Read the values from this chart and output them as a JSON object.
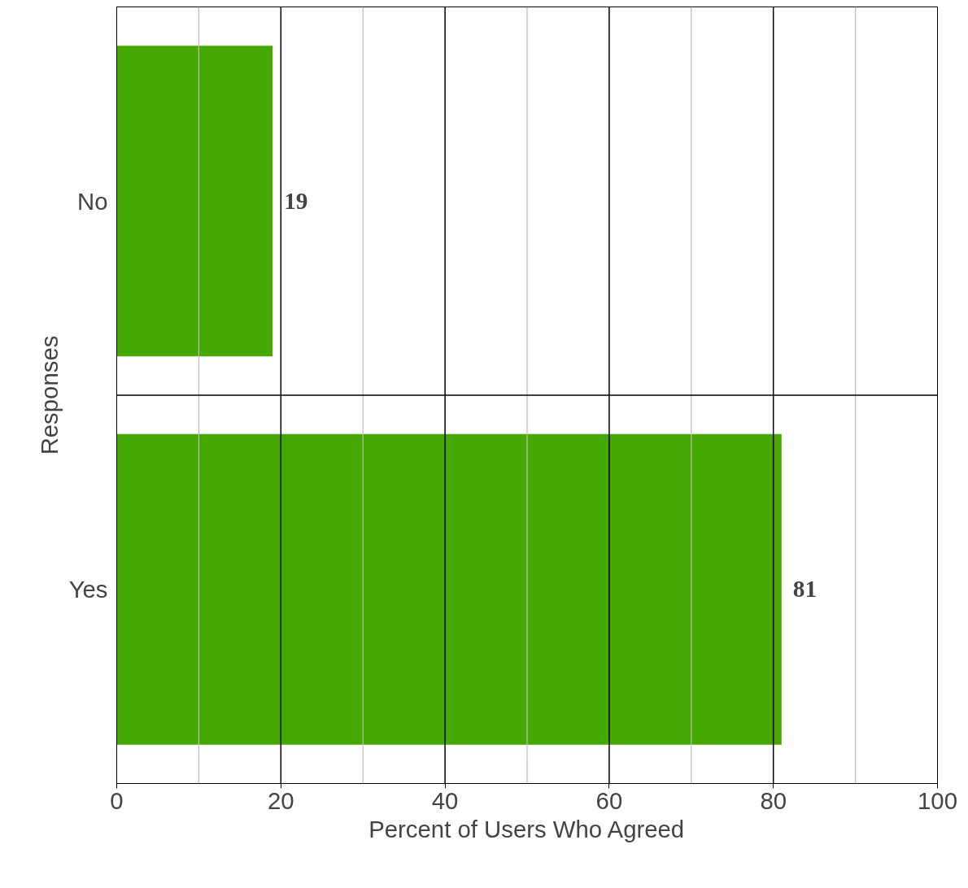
{
  "chart_data": {
    "type": "bar",
    "orientation": "horizontal",
    "xlabel": "Percent of Users Who Agreed",
    "ylabel": "Responses",
    "categories": [
      "No",
      "Yes"
    ],
    "values": [
      19,
      81
    ],
    "color": "#46a802",
    "xlim": [
      0,
      100
    ],
    "xticks": [
      0,
      {
        "value": 10,
        "label": null
      },
      20,
      {
        "value": 30,
        "label": null
      },
      40,
      {
        "value": 50,
        "label": null
      },
      60,
      {
        "value": 70,
        "label": null
      },
      80,
      {
        "value": 90,
        "label": null
      },
      100
    ],
    "grid": true,
    "data_labels": true
  }
}
